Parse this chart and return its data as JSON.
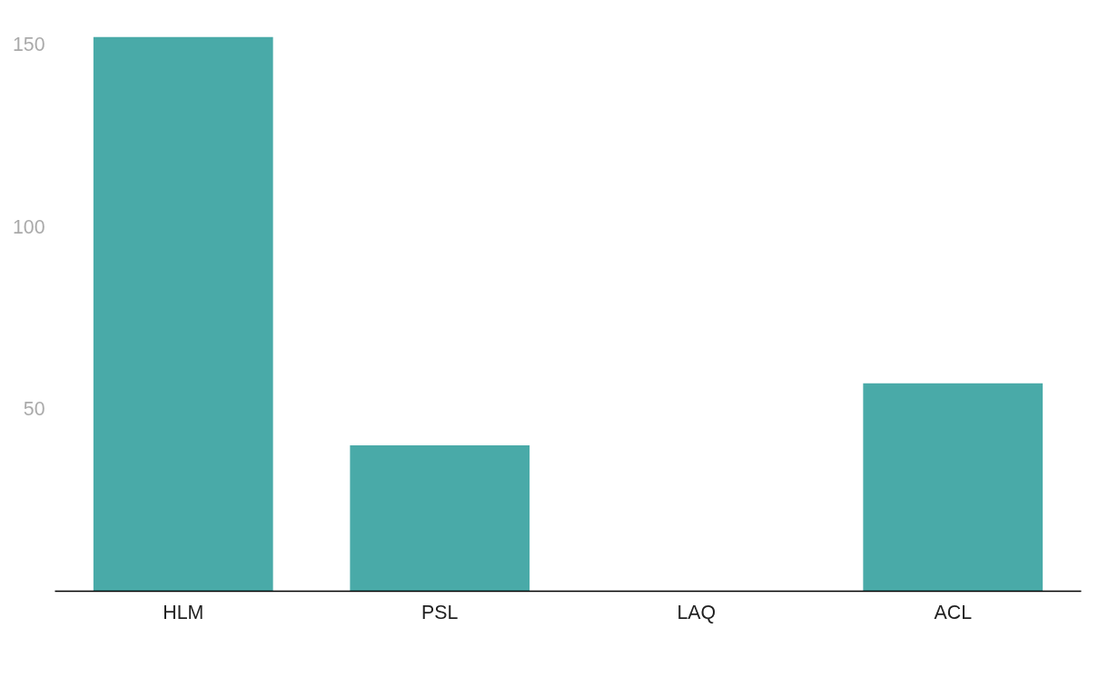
{
  "chart_data": {
    "type": "bar",
    "categories": [
      "HLM",
      "PSL",
      "LAQ",
      "ACL"
    ],
    "values": [
      152,
      40,
      0,
      57
    ],
    "color": "#49aaa8",
    "ylim": [
      0,
      152
    ],
    "yticks": [
      50,
      100,
      150
    ],
    "grid": false
  }
}
